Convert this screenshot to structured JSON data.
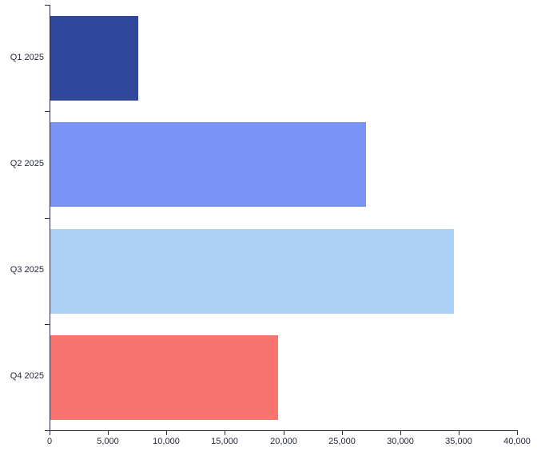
{
  "chart_data": {
    "type": "bar",
    "orientation": "horizontal",
    "title": "",
    "xlabel": "",
    "ylabel": "",
    "categories": [
      "Q1 2025",
      "Q2 2025",
      "Q3 2025",
      "Q4 2025"
    ],
    "values": [
      7500,
      27000,
      34500,
      19500
    ],
    "bar_colors": [
      "#30469a",
      "#7a93f8",
      "#add0f7",
      "#f8756f"
    ],
    "xlim": [
      0,
      40000
    ],
    "xticks": [
      0,
      5000,
      10000,
      15000,
      20000,
      25000,
      30000,
      35000,
      40000
    ],
    "xtick_labels": [
      "0",
      "5,000",
      "10,000",
      "15,000",
      "20,000",
      "25,000",
      "30,000",
      "35,000",
      "40,000"
    ],
    "grid": false,
    "legend": false,
    "background_color": "#ffffff",
    "axis_color": "#24293c",
    "text_color": "#24293c"
  }
}
